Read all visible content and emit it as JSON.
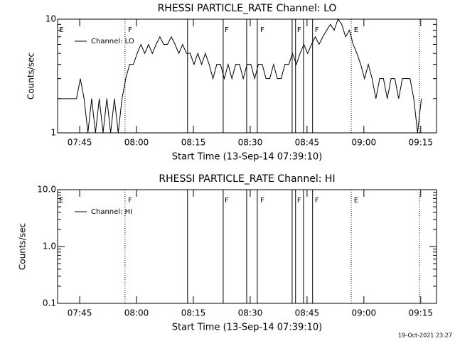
{
  "chart_data": [
    {
      "type": "line",
      "title": "RHESSI PARTICLE_RATE Channel: LO",
      "xlabel": "Start Time (13-Sep-14 07:39:10)",
      "ylabel": "Counts/sec",
      "log_y": true,
      "legend": "upper left",
      "steps": true,
      "xlim": [
        0,
        100
      ],
      "ylim": [
        1,
        10
      ],
      "xticks": [
        {
          "value": 5.833,
          "label": "07:45"
        },
        {
          "value": 20.833,
          "label": "08:00"
        },
        {
          "value": 35.833,
          "label": "08:15"
        },
        {
          "value": 50.833,
          "label": "08:30"
        },
        {
          "value": 65.833,
          "label": "08:45"
        },
        {
          "value": 80.833,
          "label": "09:00"
        },
        {
          "value": 95.833,
          "label": "09:15"
        }
      ],
      "yticks": [
        1,
        10
      ],
      "markers": [
        {
          "x": 17.8,
          "style": "dotted"
        },
        {
          "x": 34.3,
          "style": "solid"
        },
        {
          "x": 43.7,
          "style": "solid"
        },
        {
          "x": 49.9,
          "style": "solid"
        },
        {
          "x": 52.7,
          "style": "solid"
        },
        {
          "x": 61.9,
          "style": "solid"
        },
        {
          "x": 62.8,
          "style": "solid"
        },
        {
          "x": 64.9,
          "style": "solid"
        },
        {
          "x": 67.3,
          "style": "solid"
        },
        {
          "x": 77.5,
          "style": "dotted"
        },
        {
          "x": 95.5,
          "style": "dotted"
        }
      ],
      "flags": [
        {
          "text": "E",
          "x": 0.4
        },
        {
          "text": "F",
          "x": 18.6
        },
        {
          "text": "F",
          "x": 44.1
        },
        {
          "text": "F",
          "x": 53.5
        },
        {
          "text": "F",
          "x": 63.2
        },
        {
          "text": "F",
          "x": 67.9
        },
        {
          "text": "E",
          "x": 78.2
        }
      ],
      "series": [
        {
          "name": "Channel: LO",
          "color": "#000000",
          "x": [
            0,
            1,
            2,
            3,
            4,
            5,
            6,
            7,
            8,
            9,
            10,
            11,
            12,
            13,
            14,
            15,
            16,
            17,
            18,
            19,
            20,
            21,
            22,
            23,
            24,
            25,
            26,
            27,
            28,
            29,
            30,
            31,
            32,
            33,
            34,
            35,
            36,
            37,
            38,
            39,
            40,
            41,
            42,
            43,
            44,
            45,
            46,
            47,
            48,
            49,
            50,
            51,
            52,
            53,
            54,
            55,
            56,
            57,
            58,
            59,
            60,
            61,
            62,
            63,
            64,
            65,
            66,
            67,
            68,
            69,
            70,
            71,
            72,
            73,
            74,
            75,
            76,
            77,
            78,
            79,
            80,
            81,
            82,
            83,
            84,
            85,
            86,
            87,
            88,
            89,
            90,
            91,
            92,
            93,
            94,
            95,
            96
          ],
          "values": [
            2,
            2,
            2,
            2,
            2,
            2,
            3,
            2,
            1,
            2,
            1,
            2,
            1,
            2,
            1,
            2,
            1,
            2,
            3,
            4,
            4,
            5,
            6,
            5,
            6,
            5,
            6,
            7,
            6,
            6,
            7,
            6,
            5,
            6,
            5,
            5,
            4,
            5,
            4,
            5,
            4,
            3,
            4,
            4,
            3,
            4,
            3,
            4,
            4,
            3,
            4,
            4,
            3,
            4,
            4,
            3,
            3,
            4,
            3,
            3,
            4,
            4,
            5,
            4,
            5,
            6,
            5,
            6,
            7,
            6,
            7,
            8,
            9,
            8,
            10,
            9,
            7,
            8,
            6,
            5,
            4,
            3,
            4,
            3,
            2,
            3,
            3,
            2,
            3,
            3,
            2,
            3,
            3,
            3,
            2,
            1,
            2
          ]
        }
      ]
    },
    {
      "type": "line",
      "title": "RHESSI PARTICLE_RATE Channel: HI",
      "xlabel": "Start Time (13-Sep-14 07:39:10)",
      "ylabel": "Counts/sec",
      "log_y": true,
      "legend": "upper left",
      "steps": true,
      "xlim": [
        0,
        100
      ],
      "ylim": [
        0.1,
        10
      ],
      "xticks": [
        {
          "value": 5.833,
          "label": "07:45"
        },
        {
          "value": 20.833,
          "label": "08:00"
        },
        {
          "value": 35.833,
          "label": "08:15"
        },
        {
          "value": 50.833,
          "label": "08:30"
        },
        {
          "value": 65.833,
          "label": "08:45"
        },
        {
          "value": 80.833,
          "label": "09:00"
        },
        {
          "value": 95.833,
          "label": "09:15"
        }
      ],
      "yticks": [
        {
          "value": 0.1,
          "label": "0.1"
        },
        {
          "value": 1,
          "label": "1.0"
        },
        {
          "value": 10,
          "label": "10.0"
        }
      ],
      "markers": [
        {
          "x": 17.8,
          "style": "dotted"
        },
        {
          "x": 34.3,
          "style": "solid"
        },
        {
          "x": 43.7,
          "style": "solid"
        },
        {
          "x": 49.9,
          "style": "solid"
        },
        {
          "x": 52.7,
          "style": "solid"
        },
        {
          "x": 61.9,
          "style": "solid"
        },
        {
          "x": 62.8,
          "style": "solid"
        },
        {
          "x": 64.9,
          "style": "solid"
        },
        {
          "x": 67.3,
          "style": "solid"
        },
        {
          "x": 77.5,
          "style": "dotted"
        },
        {
          "x": 95.5,
          "style": "dotted"
        }
      ],
      "flags": [
        {
          "text": "E",
          "x": 0.4
        },
        {
          "text": "F",
          "x": 18.6
        },
        {
          "text": "F",
          "x": 44.1
        },
        {
          "text": "F",
          "x": 53.5
        },
        {
          "text": "F",
          "x": 63.2
        },
        {
          "text": "F",
          "x": 67.9
        },
        {
          "text": "E",
          "x": 78.2
        }
      ],
      "series": [
        {
          "name": "Channel: HI",
          "color": "#000000",
          "x": [],
          "values": []
        }
      ]
    }
  ],
  "footer": "19-Oct-2021 23:27"
}
